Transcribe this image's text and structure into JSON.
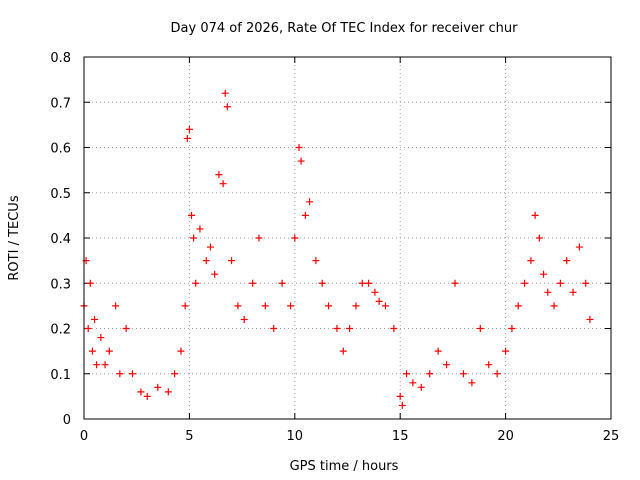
{
  "chart_data": {
    "type": "scatter",
    "title": "Day 074 of 2026, Rate Of TEC Index for receiver chur",
    "xlabel": "GPS time / hours",
    "ylabel": "ROTI / TECUs",
    "xlim": [
      0,
      25
    ],
    "ylim": [
      0,
      0.8
    ],
    "xticks": [
      "0",
      "5",
      "10",
      "15",
      "20",
      "25"
    ],
    "yticks": [
      "0",
      "0.1",
      "0.2",
      "0.3",
      "0.4",
      "0.5",
      "0.6",
      "0.7",
      "0.8"
    ],
    "grid": true,
    "marker": "+",
    "color": "#ff0000",
    "series": [
      {
        "x": [
          0.0,
          0.1,
          0.2,
          0.3,
          0.4,
          0.5,
          0.6,
          0.8,
          1.0,
          1.2,
          1.5,
          1.7,
          2.0,
          2.3,
          2.7,
          3.0,
          3.5,
          4.0,
          4.3,
          4.6,
          4.8,
          4.9,
          5.0,
          5.1,
          5.2,
          5.3,
          5.5,
          5.8,
          6.0,
          6.2,
          6.4,
          6.6,
          6.7,
          6.8,
          7.0,
          7.3,
          7.6,
          8.0,
          8.3,
          8.6,
          9.0,
          9.4,
          9.8,
          10.0,
          10.2,
          10.3,
          10.5,
          10.7,
          11.0,
          11.3,
          11.6,
          12.0,
          12.3,
          12.6,
          12.9,
          13.2,
          13.5,
          13.8,
          14.0,
          14.3,
          14.7,
          15.0,
          15.1,
          15.3,
          15.6,
          16.0,
          16.4,
          16.8,
          17.2,
          17.6,
          18.0,
          18.4,
          18.8,
          19.2,
          19.6,
          20.0,
          20.3,
          20.6,
          20.9,
          21.2,
          21.4,
          21.6,
          21.8,
          22.0,
          22.3,
          22.6,
          22.9,
          23.2,
          23.5,
          23.8,
          24.0
        ],
        "y": [
          0.25,
          0.35,
          0.2,
          0.3,
          0.15,
          0.22,
          0.12,
          0.18,
          0.12,
          0.15,
          0.25,
          0.1,
          0.2,
          0.1,
          0.06,
          0.05,
          0.07,
          0.06,
          0.1,
          0.15,
          0.25,
          0.62,
          0.64,
          0.45,
          0.4,
          0.3,
          0.42,
          0.35,
          0.38,
          0.32,
          0.54,
          0.52,
          0.72,
          0.69,
          0.35,
          0.25,
          0.22,
          0.3,
          0.4,
          0.25,
          0.2,
          0.3,
          0.25,
          0.4,
          0.6,
          0.57,
          0.45,
          0.48,
          0.35,
          0.3,
          0.25,
          0.2,
          0.15,
          0.2,
          0.25,
          0.3,
          0.3,
          0.28,
          0.26,
          0.25,
          0.2,
          0.05,
          0.03,
          0.1,
          0.08,
          0.07,
          0.1,
          0.15,
          0.12,
          0.3,
          0.1,
          0.08,
          0.2,
          0.12,
          0.1,
          0.15,
          0.2,
          0.25,
          0.3,
          0.35,
          0.45,
          0.4,
          0.32,
          0.28,
          0.25,
          0.3,
          0.35,
          0.28,
          0.38,
          0.3,
          0.22
        ]
      }
    ]
  }
}
